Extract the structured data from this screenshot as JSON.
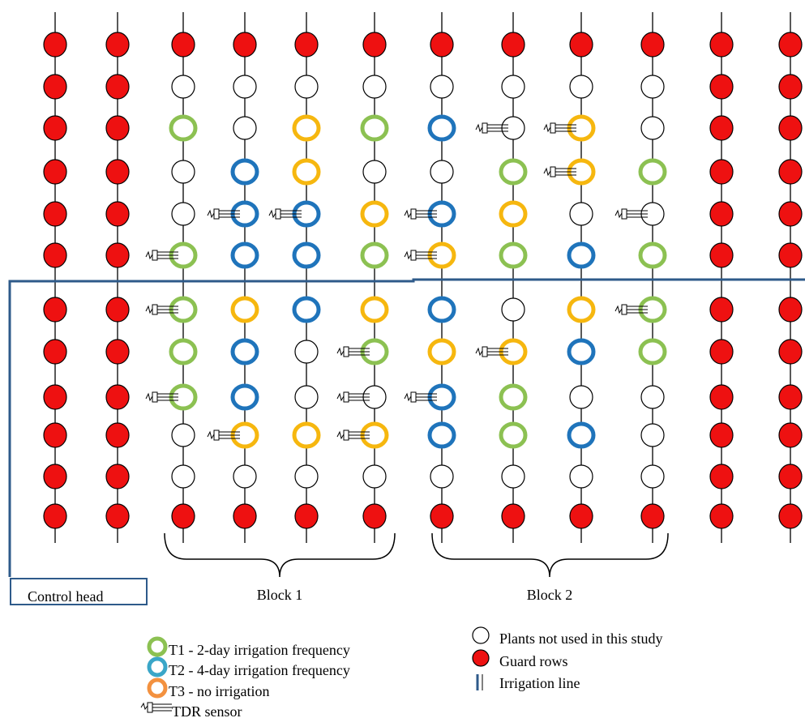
{
  "labels": {
    "control_head": "Control head",
    "block1": "Block 1",
    "block2": "Block 2"
  },
  "legend": {
    "t1": "T1 - 2-day irrigation frequency",
    "t2": "T2 - 4-day irrigation frequency",
    "t3": "T3 - no irrigation",
    "tdr": "TDR sensor",
    "plants_not_used": "Plants not used in this study",
    "guard": "Guard rows",
    "irrigation_line": "Irrigation line"
  },
  "colors": {
    "guard": "#ee1111",
    "t1": "#8cc152",
    "t2": "#1f74bb",
    "t3": "#f6b70f",
    "t3_legend": "#f3913f",
    "line": "#2e5a8a"
  },
  "grid": {
    "legend_codes": "R=guard row plant, W=plant not used, G=T1, B=T2, Y=T3",
    "rows": [
      "RRRRRRRRRRRR",
      "RRWWWWWWWWRR",
      "RRGWYGBWYWRR",
      "RRWBYWWGYGRR",
      "RRWBBYBYWWRR",
      "RRGBBGYGBGRR",
      "RRGYBYBWYGRR",
      "RRGBWGYYBGRR",
      "RRGBWWBGWWRR",
      "RRWYYYBGBWRR",
      "RRWWWWWWWWRR",
      "RRRRRRRRRRRR"
    ],
    "sensors": [
      [
        2,
        5
      ],
      [
        2,
        6
      ],
      [
        2,
        8
      ],
      [
        3,
        4
      ],
      [
        3,
        9
      ],
      [
        4,
        4
      ],
      [
        5,
        7
      ],
      [
        5,
        8
      ],
      [
        5,
        9
      ],
      [
        6,
        4
      ],
      [
        6,
        5
      ],
      [
        6,
        8
      ],
      [
        7,
        2
      ],
      [
        7,
        7
      ],
      [
        8,
        2
      ],
      [
        8,
        3
      ],
      [
        9,
        4
      ],
      [
        9,
        6
      ]
    ]
  }
}
